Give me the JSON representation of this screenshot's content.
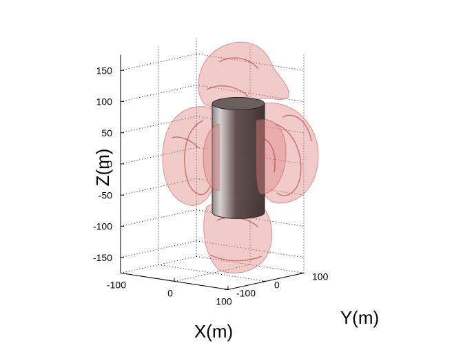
{
  "chart_data": {
    "type": "surface3d",
    "title": "",
    "xlabel": "X(m)",
    "ylabel": "Y(m)",
    "zlabel": "Z(m)",
    "xlim": [
      -100,
      100
    ],
    "ylim": [
      -100,
      100
    ],
    "zlim": [
      -175,
      175
    ],
    "x_ticks": [
      "-100",
      "0",
      "100"
    ],
    "y_ticks": [
      "-100",
      "0",
      "100"
    ],
    "z_ticks": [
      "-150",
      "-100",
      "-50",
      "0",
      "50",
      "100",
      "150"
    ],
    "grid": true,
    "objects": [
      {
        "name": "cylinder",
        "shape": "cylinder",
        "color": "#555050",
        "z_range": [
          -80,
          100
        ]
      },
      {
        "name": "top-lobe",
        "shape": "lobe",
        "color": "#e08a8a",
        "transparent": true
      },
      {
        "name": "bottom-lobe",
        "shape": "lobe",
        "color": "#e08a8a",
        "transparent": true
      },
      {
        "name": "left-lobe",
        "shape": "lobe",
        "color": "#e08a8a",
        "transparent": true
      },
      {
        "name": "right-lobe",
        "shape": "lobe",
        "color": "#e08a8a",
        "transparent": true
      }
    ]
  }
}
